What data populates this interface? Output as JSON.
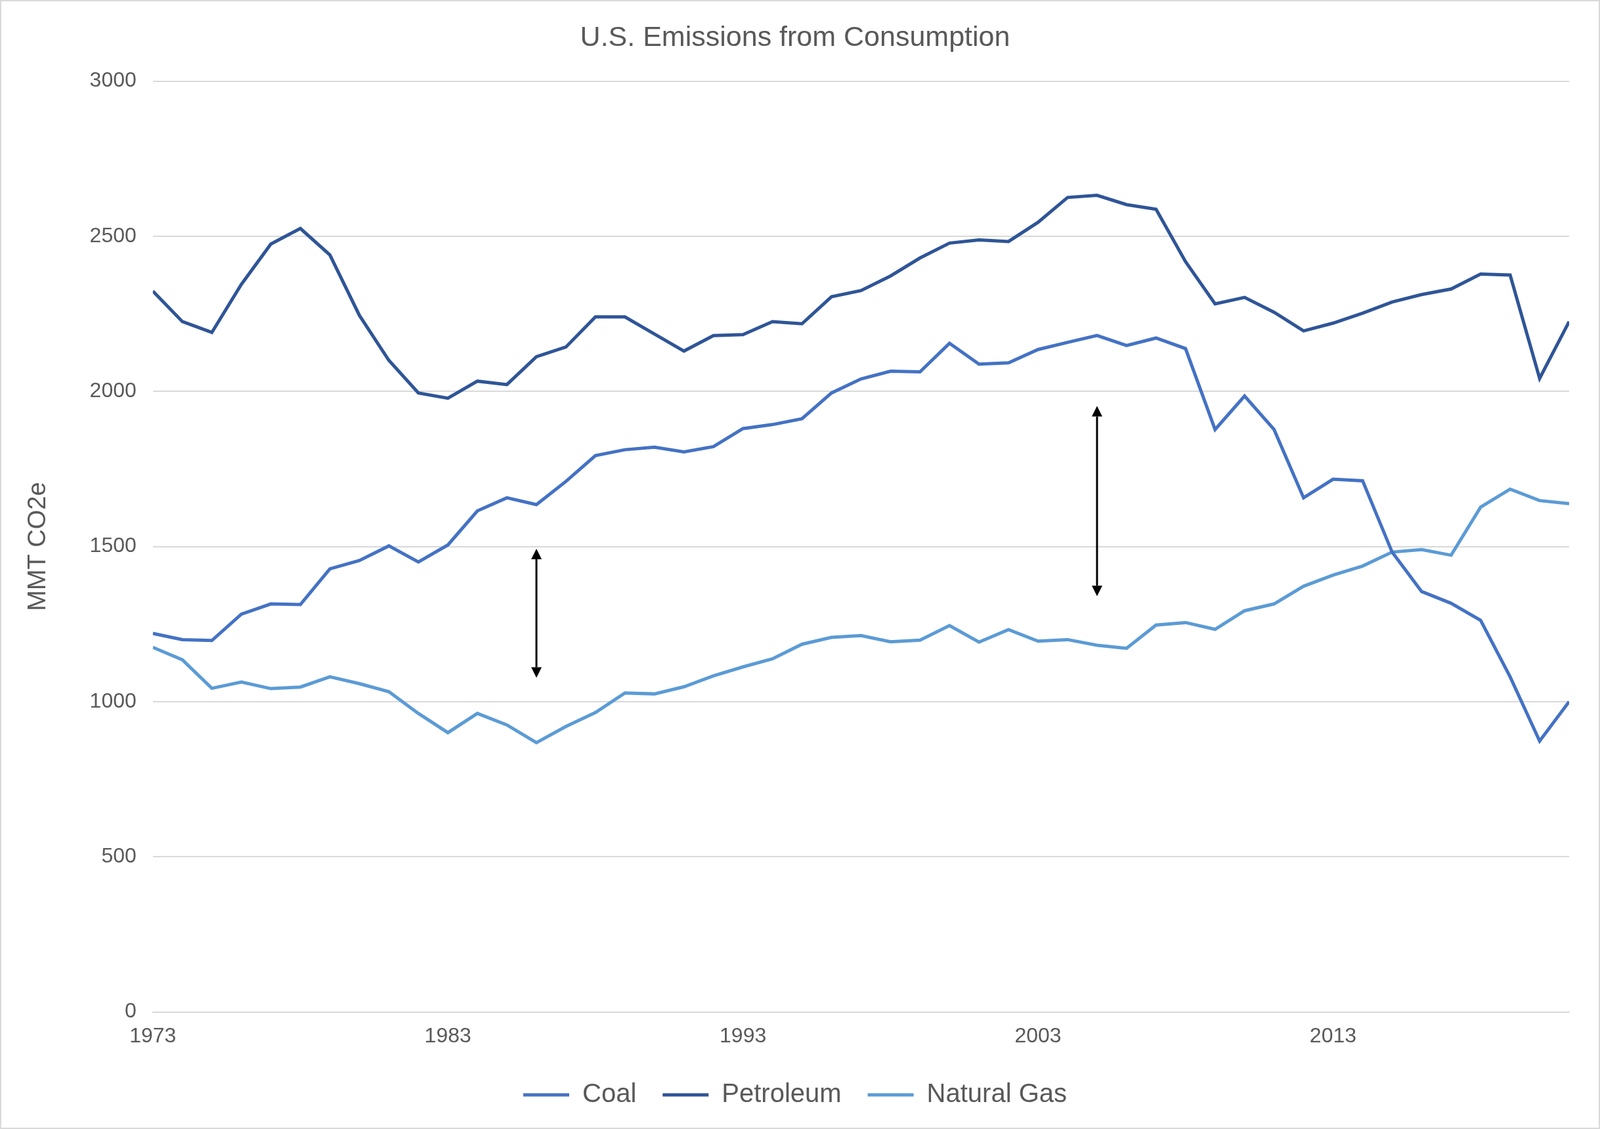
{
  "chart_data": {
    "type": "line",
    "title": "U.S. Emissions from Consumption",
    "y_label": "MMT CO2e",
    "x": [
      1973,
      1974,
      1975,
      1976,
      1977,
      1978,
      1979,
      1980,
      1981,
      1982,
      1983,
      1984,
      1985,
      1986,
      1987,
      1988,
      1989,
      1990,
      1991,
      1992,
      1993,
      1994,
      1995,
      1996,
      1997,
      1998,
      1999,
      2000,
      2001,
      2002,
      2003,
      2004,
      2005,
      2006,
      2007,
      2008,
      2009,
      2010,
      2011,
      2012,
      2013,
      2014,
      2015,
      2016,
      2017,
      2018,
      2019,
      2020,
      2021
    ],
    "series": [
      {
        "name": "Coal",
        "color": "#4472c4",
        "values": [
          1220,
          1200,
          1197,
          1282,
          1315,
          1313,
          1428,
          1455,
          1502,
          1450,
          1505,
          1615,
          1657,
          1635,
          1710,
          1793,
          1812,
          1820,
          1805,
          1822,
          1880,
          1893,
          1912,
          1995,
          2040,
          2065,
          2063,
          2155,
          2088,
          2092,
          2135,
          2158,
          2180,
          2148,
          2172,
          2138,
          1877,
          1985,
          1877,
          1657,
          1717,
          1712,
          1482,
          1355,
          1317,
          1262,
          1080,
          873,
          1000
        ]
      },
      {
        "name": "Petroleum",
        "color": "#2f5597",
        "values": [
          2323,
          2225,
          2190,
          2345,
          2475,
          2525,
          2440,
          2245,
          2100,
          1995,
          1978,
          2033,
          2022,
          2112,
          2143,
          2240,
          2240,
          2185,
          2130,
          2180,
          2183,
          2225,
          2218,
          2305,
          2325,
          2372,
          2430,
          2478,
          2488,
          2483,
          2545,
          2625,
          2632,
          2602,
          2587,
          2418,
          2282,
          2303,
          2255,
          2195,
          2220,
          2252,
          2288,
          2312,
          2330,
          2378,
          2375,
          2042,
          2225
        ]
      },
      {
        "name": "Natural Gas",
        "color": "#5b9bd5",
        "values": [
          1175,
          1135,
          1043,
          1063,
          1042,
          1047,
          1080,
          1058,
          1032,
          962,
          900,
          962,
          925,
          868,
          920,
          965,
          1028,
          1025,
          1048,
          1083,
          1112,
          1138,
          1185,
          1207,
          1213,
          1193,
          1198,
          1245,
          1192,
          1232,
          1195,
          1200,
          1182,
          1172,
          1247,
          1255,
          1233,
          1293,
          1315,
          1372,
          1408,
          1437,
          1482,
          1490,
          1472,
          1627,
          1685,
          1648,
          1638
        ]
      }
    ],
    "xlim": [
      1973,
      2021
    ],
    "xticks": [
      1973,
      1983,
      1993,
      2003,
      2013
    ],
    "ylim": [
      0,
      3000
    ],
    "yticks": [
      0,
      500,
      1000,
      1500,
      2000,
      2500,
      3000
    ],
    "grid": true,
    "legend": "bottom",
    "arrows": [
      {
        "x": 1986,
        "y_from": 1077,
        "y_to": 1493
      },
      {
        "x": 2005,
        "y_from": 1340,
        "y_to": 1953
      }
    ]
  }
}
